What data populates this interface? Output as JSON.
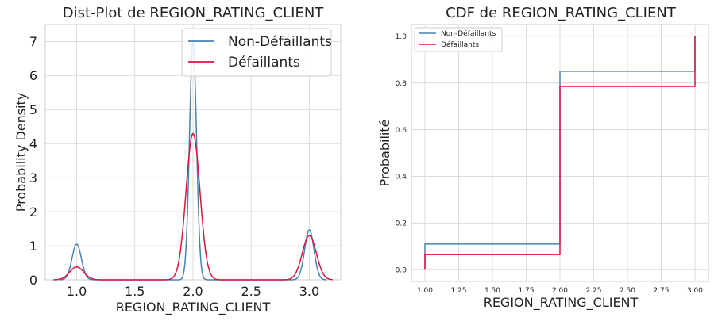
{
  "colors": {
    "non": "#4682b4",
    "def": "#dc143c",
    "grid": "#dcdcdc",
    "frame": "#cccccc",
    "text": "#222222"
  },
  "chart_data": [
    {
      "type": "line",
      "title": "Dist-Plot de REGION_RATING_CLIENT",
      "xlabel": "REGION_RATING_CLIENT",
      "ylabel": "Probability Density",
      "xlim": [
        0.73,
        3.27
      ],
      "ylim": [
        0,
        7.5
      ],
      "xticks": [
        1.0,
        1.5,
        2.0,
        2.5,
        3.0
      ],
      "xtick_labels": [
        "1.0",
        "1.5",
        "2.0",
        "2.5",
        "3.0"
      ],
      "yticks": [
        0,
        1,
        2,
        3,
        4,
        5,
        6,
        7
      ],
      "ytick_labels": [
        "0",
        "1",
        "2",
        "3",
        "4",
        "5",
        "6",
        "7"
      ],
      "grid": true,
      "legend_position": "top-right",
      "series": [
        {
          "name": "Non-Défaillants",
          "color_key": "non",
          "range": [
            0.85,
            3.15
          ],
          "peaks": [
            {
              "x": 1.0,
              "y": 1.05,
              "sigma": 0.04
            },
            {
              "x": 2.0,
              "y": 7.0,
              "sigma": 0.03
            },
            {
              "x": 3.0,
              "y": 1.47,
              "sigma": 0.04
            }
          ]
        },
        {
          "name": "Défaillants",
          "color_key": "def",
          "range": [
            0.8,
            3.2
          ],
          "peaks": [
            {
              "x": 1.0,
              "y": 0.38,
              "sigma": 0.06
            },
            {
              "x": 2.0,
              "y": 4.3,
              "sigma": 0.06
            },
            {
              "x": 3.0,
              "y": 1.3,
              "sigma": 0.06
            }
          ]
        }
      ]
    },
    {
      "type": "line",
      "title": "CDF de REGION_RATING_CLIENT",
      "xlabel": "REGION_RATING_CLIENT",
      "ylabel": "Probabilité",
      "xlim": [
        0.9,
        3.1
      ],
      "ylim": [
        -0.05,
        1.05
      ],
      "xticks": [
        1.0,
        1.25,
        1.5,
        1.75,
        2.0,
        2.25,
        2.5,
        2.75,
        3.0
      ],
      "xtick_labels": [
        "1.00",
        "1.25",
        "1.50",
        "1.75",
        "2.00",
        "2.25",
        "2.50",
        "2.75",
        "3.00"
      ],
      "yticks": [
        0,
        0.2,
        0.4,
        0.6,
        0.8,
        1.0
      ],
      "ytick_labels": [
        "0.0",
        "0.2",
        "0.4",
        "0.6",
        "0.8",
        "1.0"
      ],
      "grid": true,
      "legend_position": "top-left",
      "series": [
        {
          "name": "Non-Défaillants",
          "color_key": "non",
          "x": [
            1.0,
            1.0,
            2.0,
            2.0,
            3.0,
            3.0
          ],
          "y": [
            0.0,
            0.11,
            0.11,
            0.85,
            0.85,
            1.0
          ]
        },
        {
          "name": "Défaillants",
          "color_key": "def",
          "x": [
            1.0,
            1.0,
            2.0,
            2.0,
            3.0,
            3.0
          ],
          "y": [
            0.0,
            0.065,
            0.065,
            0.785,
            0.785,
            1.0
          ]
        }
      ]
    }
  ]
}
